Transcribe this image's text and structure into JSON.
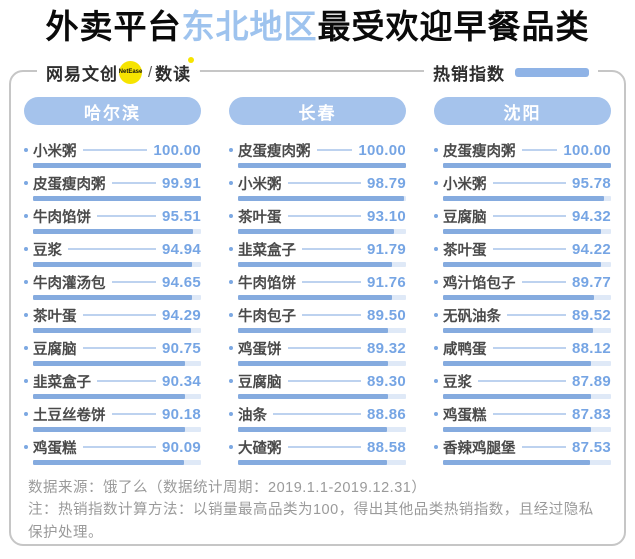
{
  "title": {
    "prefix": "外卖平台",
    "highlight": "东北地区",
    "suffix": "最受欢迎早餐品类"
  },
  "header": {
    "brand": "网易文创",
    "brand_badge": "NetEase",
    "brand_separator": "/",
    "brand_suffix": "数读",
    "legend_label": "热销指数"
  },
  "colors": {
    "title_highlight": "#9ec3ee",
    "city_pill_bg": "#a5c3ec",
    "bar_fill": "#85abdf",
    "bar_track": "#dfe9f7",
    "value_text": "#76a5e4",
    "bullet": "#7ca8e2",
    "badge_yellow": "#f6e400",
    "frame_border": "#c6c6c6",
    "footer_text": "#9a9a9a"
  },
  "chart_data": {
    "type": "bar",
    "orientation": "horizontal",
    "value_label": "热销指数",
    "value_range": [
      0,
      100
    ],
    "title": "外卖平台东北地区最受欢迎早餐品类",
    "groups": [
      {
        "city": "哈尔滨",
        "items": [
          {
            "name": "小米粥",
            "value": "100.00"
          },
          {
            "name": "皮蛋瘦肉粥",
            "value": "99.91"
          },
          {
            "name": "牛肉馅饼",
            "value": "95.51"
          },
          {
            "name": "豆浆",
            "value": "94.94"
          },
          {
            "name": "牛肉灌汤包",
            "value": "94.65"
          },
          {
            "name": "茶叶蛋",
            "value": "94.29"
          },
          {
            "name": "豆腐脑",
            "value": "90.75"
          },
          {
            "name": "韭菜盒子",
            "value": "90.34"
          },
          {
            "name": "土豆丝卷饼",
            "value": "90.18"
          },
          {
            "name": "鸡蛋糕",
            "value": "90.09"
          }
        ]
      },
      {
        "city": "长春",
        "items": [
          {
            "name": "皮蛋瘦肉粥",
            "value": "100.00"
          },
          {
            "name": "小米粥",
            "value": "98.79"
          },
          {
            "name": "茶叶蛋",
            "value": "93.10"
          },
          {
            "name": "韭菜盒子",
            "value": "91.79"
          },
          {
            "name": "牛肉馅饼",
            "value": "91.76"
          },
          {
            "name": "牛肉包子",
            "value": "89.50"
          },
          {
            "name": "鸡蛋饼",
            "value": "89.32"
          },
          {
            "name": "豆腐脑",
            "value": "89.30"
          },
          {
            "name": "油条",
            "value": "88.86"
          },
          {
            "name": "大碴粥",
            "value": "88.58"
          }
        ]
      },
      {
        "city": "沈阳",
        "items": [
          {
            "name": "皮蛋瘦肉粥",
            "value": "100.00"
          },
          {
            "name": "小米粥",
            "value": "95.78"
          },
          {
            "name": "豆腐脑",
            "value": "94.32"
          },
          {
            "name": "茶叶蛋",
            "value": "94.22"
          },
          {
            "name": "鸡汁馅包子",
            "value": "89.77"
          },
          {
            "name": "无矾油条",
            "value": "89.52"
          },
          {
            "name": "咸鸭蛋",
            "value": "88.12"
          },
          {
            "name": "豆浆",
            "value": "87.89"
          },
          {
            "name": "鸡蛋糕",
            "value": "87.83"
          },
          {
            "name": "香辣鸡腿堡",
            "value": "87.53"
          }
        ]
      }
    ]
  },
  "footer": {
    "source": "数据来源：饿了么（数据统计周期：2019.1.1-2019.12.31）",
    "note": "注：热销指数计算方法：以销量最高品类为100，得出其他品类热销指数，且经过隐私保护处理。"
  }
}
